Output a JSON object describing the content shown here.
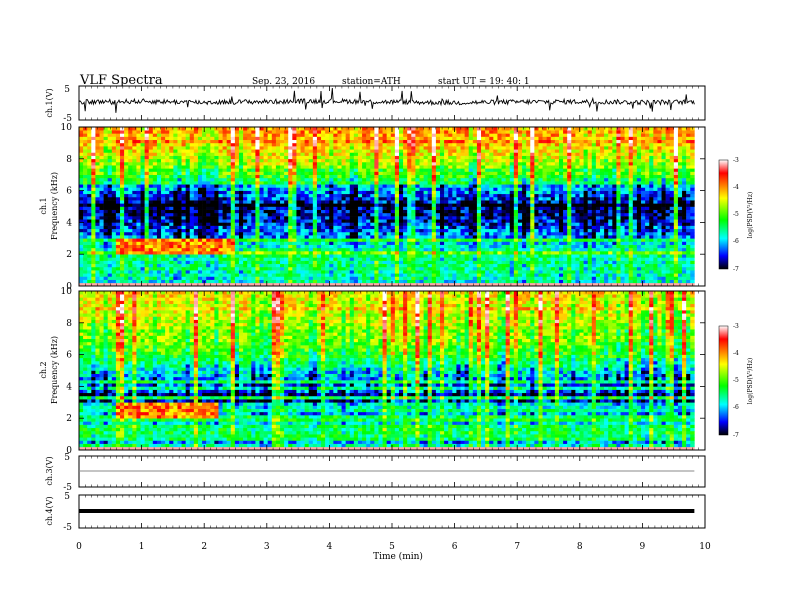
{
  "header": {
    "title": "VLF  Spectra",
    "date": "Sep. 23, 2016",
    "station": "station=ATH",
    "start": "start  UT =    19: 40: 1"
  },
  "xaxis": {
    "label": "Time  (min)",
    "ticks": [
      "0",
      "1",
      "2",
      "3",
      "4",
      "5",
      "6",
      "7",
      "8",
      "9",
      "10"
    ]
  },
  "panels": {
    "ch1": {
      "ylabel": "ch.1(V)",
      "ticks": [
        "5",
        "-5"
      ]
    },
    "spec1": {
      "ylabel": "ch.1\nFrequency (kHz)",
      "ticks": [
        "0",
        "2",
        "4",
        "6",
        "8",
        "10"
      ]
    },
    "spec2": {
      "ylabel": "ch.2\nFrequency (kHz)",
      "ticks": [
        "0",
        "2",
        "4",
        "6",
        "8",
        "10"
      ]
    },
    "ch3": {
      "ylabel": "ch.3(V)",
      "ticks": [
        "5",
        "-5"
      ]
    },
    "ch4": {
      "ylabel": "ch.4(V)",
      "ticks": [
        "5",
        "-5"
      ]
    }
  },
  "colorbar": {
    "label": "log(PSD(V²/Hz)",
    "ticks": [
      "-3",
      "-4",
      "-5",
      "-6",
      "-7"
    ],
    "colors": [
      "#ffffff",
      "#ff0000",
      "#ffff00",
      "#00ff00",
      "#00ffff",
      "#0000ff",
      "#000000"
    ]
  },
  "chart_data": [
    {
      "type": "line",
      "title": "ch.1(V)",
      "xlabel": "Time  (min)",
      "ylabel": "ch.1(V)",
      "xlim": [
        0,
        10
      ],
      "ylim": [
        -5,
        5
      ],
      "data_end_min": 9.83,
      "series": [
        {
          "values": [
            0.3,
            0.5,
            0.2,
            0.4,
            0.6,
            0.3,
            0.1,
            0.3,
            0.4,
            0.2,
            0.3
          ]
        }
      ]
    },
    {
      "type": "heatmap",
      "title": "ch.1 Frequency (kHz)",
      "xlabel": "Time  (min)",
      "ylabel": "Frequency (kHz)",
      "xlim": [
        0,
        10
      ],
      "ylim": [
        0,
        10
      ],
      "zlabel": "log(PSD(V²/Hz)",
      "zlim": [
        -7,
        -3
      ],
      "freq_profile_khz": [
        0,
        1,
        2,
        3,
        4,
        5,
        6,
        7,
        8,
        9,
        10
      ],
      "freq_profile_logpsd": [
        -6.0,
        -5.8,
        -5.7,
        -6.2,
        -6.6,
        -6.8,
        -6.3,
        -5.2,
        -4.7,
        -4.3,
        -4.1
      ],
      "chorus_burst": {
        "time_min": [
          0.6,
          2.5
        ],
        "freq_khz": [
          2.0,
          3.0
        ],
        "logpsd": -3.5
      }
    },
    {
      "type": "heatmap",
      "title": "ch.2 Frequency (kHz)",
      "xlabel": "Time  (min)",
      "ylabel": "Frequency (kHz)",
      "xlim": [
        0,
        10
      ],
      "ylim": [
        0,
        10
      ],
      "zlabel": "log(PSD(V²/Hz)",
      "zlim": [
        -7,
        -3
      ],
      "freq_profile_khz": [
        0,
        1,
        2,
        3,
        4,
        5,
        6,
        7,
        8,
        9,
        10
      ],
      "freq_profile_logpsd": [
        -5.8,
        -5.6,
        -5.5,
        -6.1,
        -6.5,
        -6.0,
        -5.3,
        -5.0,
        -4.8,
        -4.6,
        -4.5
      ],
      "chorus_burst": {
        "time_min": [
          0.6,
          2.2
        ],
        "freq_khz": [
          2.0,
          3.0
        ],
        "logpsd": -3.5
      }
    },
    {
      "type": "line",
      "title": "ch.3(V)",
      "xlabel": "Time  (min)",
      "ylabel": "ch.3(V)",
      "xlim": [
        0,
        10
      ],
      "ylim": [
        -5,
        5
      ],
      "data_end_min": 9.83,
      "series": [
        {
          "values": [
            0,
            0,
            0,
            0,
            0,
            0,
            0,
            0,
            0,
            0,
            0
          ]
        }
      ]
    },
    {
      "type": "line",
      "title": "ch.4(V)",
      "xlabel": "Time  (min)",
      "ylabel": "ch.4(V)",
      "xlim": [
        0,
        10
      ],
      "ylim": [
        -5,
        5
      ],
      "data_end_min": 9.83,
      "series": [
        {
          "values": [
            0,
            0,
            0,
            0,
            0,
            0,
            0,
            0,
            0,
            0,
            0
          ]
        }
      ]
    }
  ]
}
